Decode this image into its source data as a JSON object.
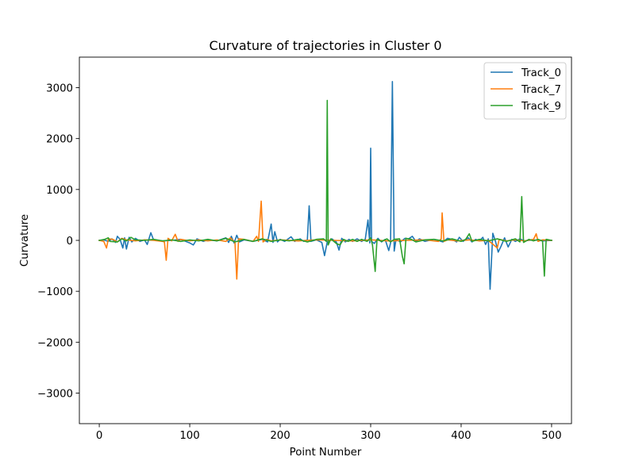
{
  "chart_data": {
    "type": "line",
    "title": "Curvature of trajectories in Cluster 0",
    "xlabel": "Point Number",
    "ylabel": "Curvature",
    "xlim": [
      -22,
      522
    ],
    "ylim": [
      -3600,
      3600
    ],
    "xticks": [
      0,
      100,
      200,
      300,
      400,
      500
    ],
    "yticks": [
      -3000,
      -2000,
      -1000,
      0,
      1000,
      2000,
      3000
    ],
    "xtick_labels": [
      "0",
      "100",
      "200",
      "300",
      "400",
      "500"
    ],
    "ytick_labels": [
      "−3000",
      "−2000",
      "−1000",
      "0",
      "1000",
      "2000",
      "3000"
    ],
    "grid": false,
    "legend_position": "top-right",
    "series": [
      {
        "name": "Track_0",
        "color": "#1f77b4",
        "points": [
          [
            0,
            0
          ],
          [
            5,
            10
          ],
          [
            10,
            -20
          ],
          [
            14,
            30
          ],
          [
            18,
            -40
          ],
          [
            20,
            80
          ],
          [
            23,
            20
          ],
          [
            26,
            -150
          ],
          [
            28,
            50
          ],
          [
            30,
            -170
          ],
          [
            33,
            60
          ],
          [
            36,
            -30
          ],
          [
            40,
            40
          ],
          [
            45,
            -20
          ],
          [
            50,
            10
          ],
          [
            53,
            -80
          ],
          [
            57,
            150
          ],
          [
            60,
            10
          ],
          [
            70,
            -10
          ],
          [
            80,
            0
          ],
          [
            90,
            20
          ],
          [
            100,
            -50
          ],
          [
            104,
            -90
          ],
          [
            108,
            30
          ],
          [
            115,
            -20
          ],
          [
            120,
            10
          ],
          [
            130,
            -10
          ],
          [
            140,
            50
          ],
          [
            143,
            -40
          ],
          [
            146,
            80
          ],
          [
            149,
            -50
          ],
          [
            152,
            100
          ],
          [
            155,
            -30
          ],
          [
            160,
            10
          ],
          [
            170,
            -20
          ],
          [
            180,
            20
          ],
          [
            186,
            -30
          ],
          [
            190,
            320
          ],
          [
            192,
            -40
          ],
          [
            194,
            170
          ],
          [
            197,
            -30
          ],
          [
            200,
            20
          ],
          [
            205,
            -20
          ],
          [
            212,
            70
          ],
          [
            216,
            -20
          ],
          [
            222,
            30
          ],
          [
            226,
            -20
          ],
          [
            230,
            10
          ],
          [
            232,
            680
          ],
          [
            234,
            -20
          ],
          [
            240,
            10
          ],
          [
            246,
            -40
          ],
          [
            249,
            -300
          ],
          [
            252,
            -30
          ],
          [
            257,
            30
          ],
          [
            262,
            -30
          ],
          [
            265,
            -190
          ],
          [
            268,
            40
          ],
          [
            272,
            -30
          ],
          [
            276,
            20
          ],
          [
            280,
            -20
          ],
          [
            285,
            30
          ],
          [
            290,
            -20
          ],
          [
            294,
            20
          ],
          [
            297,
            400
          ],
          [
            299,
            -50
          ],
          [
            300,
            1810
          ],
          [
            301,
            -20
          ],
          [
            304,
            -60
          ],
          [
            308,
            40
          ],
          [
            312,
            -30
          ],
          [
            316,
            20
          ],
          [
            320,
            -200
          ],
          [
            322,
            -50
          ],
          [
            324,
            3120
          ],
          [
            326,
            -210
          ],
          [
            328,
            20
          ],
          [
            333,
            -30
          ],
          [
            338,
            40
          ],
          [
            342,
            30
          ],
          [
            346,
            80
          ],
          [
            350,
            -20
          ],
          [
            354,
            30
          ],
          [
            360,
            -20
          ],
          [
            370,
            20
          ],
          [
            380,
            -30
          ],
          [
            385,
            40
          ],
          [
            390,
            20
          ],
          [
            395,
            -30
          ],
          [
            398,
            60
          ],
          [
            402,
            -20
          ],
          [
            408,
            50
          ],
          [
            412,
            -30
          ],
          [
            416,
            20
          ],
          [
            420,
            -10
          ],
          [
            424,
            60
          ],
          [
            427,
            -80
          ],
          [
            430,
            30
          ],
          [
            432,
            -960
          ],
          [
            435,
            140
          ],
          [
            438,
            -20
          ],
          [
            441,
            -230
          ],
          [
            444,
            -120
          ],
          [
            448,
            50
          ],
          [
            452,
            -130
          ],
          [
            456,
            20
          ],
          [
            460,
            -20
          ],
          [
            465,
            30
          ],
          [
            470,
            -10
          ],
          [
            480,
            10
          ],
          [
            490,
            -10
          ],
          [
            500,
            0
          ]
        ]
      },
      {
        "name": "Track_7",
        "color": "#ff7f0e",
        "points": [
          [
            0,
            0
          ],
          [
            5,
            -20
          ],
          [
            8,
            -150
          ],
          [
            10,
            30
          ],
          [
            15,
            20
          ],
          [
            20,
            -30
          ],
          [
            25,
            40
          ],
          [
            30,
            10
          ],
          [
            40,
            -10
          ],
          [
            50,
            10
          ],
          [
            60,
            0
          ],
          [
            70,
            -20
          ],
          [
            72,
            -30
          ],
          [
            74,
            -390
          ],
          [
            76,
            40
          ],
          [
            80,
            -10
          ],
          [
            84,
            120
          ],
          [
            87,
            -20
          ],
          [
            90,
            20
          ],
          [
            100,
            -10
          ],
          [
            110,
            10
          ],
          [
            120,
            -10
          ],
          [
            130,
            10
          ],
          [
            140,
            -20
          ],
          [
            145,
            50
          ],
          [
            150,
            -40
          ],
          [
            152,
            -760
          ],
          [
            154,
            30
          ],
          [
            160,
            20
          ],
          [
            170,
            -20
          ],
          [
            174,
            80
          ],
          [
            176,
            -20
          ],
          [
            179,
            770
          ],
          [
            181,
            -30
          ],
          [
            185,
            20
          ],
          [
            190,
            -10
          ],
          [
            200,
            10
          ],
          [
            220,
            -10
          ],
          [
            240,
            10
          ],
          [
            260,
            0
          ],
          [
            280,
            -10
          ],
          [
            300,
            10
          ],
          [
            320,
            -10
          ],
          [
            340,
            0
          ],
          [
            360,
            10
          ],
          [
            375,
            -20
          ],
          [
            378,
            30
          ],
          [
            379,
            540
          ],
          [
            381,
            -20
          ],
          [
            385,
            10
          ],
          [
            395,
            -10
          ],
          [
            410,
            10
          ],
          [
            420,
            -10
          ],
          [
            430,
            0
          ],
          [
            440,
            -150
          ],
          [
            442,
            20
          ],
          [
            450,
            -10
          ],
          [
            460,
            10
          ],
          [
            470,
            -10
          ],
          [
            480,
            20
          ],
          [
            483,
            130
          ],
          [
            485,
            -20
          ],
          [
            490,
            10
          ],
          [
            500,
            0
          ]
        ]
      },
      {
        "name": "Track_9",
        "color": "#2ca02c",
        "points": [
          [
            0,
            0
          ],
          [
            6,
            20
          ],
          [
            10,
            50
          ],
          [
            12,
            -20
          ],
          [
            20,
            -30
          ],
          [
            25,
            30
          ],
          [
            30,
            -10
          ],
          [
            35,
            60
          ],
          [
            40,
            10
          ],
          [
            50,
            0
          ],
          [
            60,
            20
          ],
          [
            70,
            -10
          ],
          [
            80,
            10
          ],
          [
            90,
            -20
          ],
          [
            100,
            10
          ],
          [
            110,
            -10
          ],
          [
            120,
            20
          ],
          [
            130,
            -10
          ],
          [
            140,
            40
          ],
          [
            150,
            -30
          ],
          [
            160,
            20
          ],
          [
            170,
            -20
          ],
          [
            180,
            30
          ],
          [
            190,
            -20
          ],
          [
            200,
            10
          ],
          [
            210,
            -10
          ],
          [
            220,
            20
          ],
          [
            230,
            -30
          ],
          [
            240,
            20
          ],
          [
            248,
            30
          ],
          [
            251,
            -20
          ],
          [
            252,
            2750
          ],
          [
            253,
            -90
          ],
          [
            256,
            30
          ],
          [
            262,
            -60
          ],
          [
            266,
            -90
          ],
          [
            270,
            20
          ],
          [
            275,
            -20
          ],
          [
            280,
            20
          ],
          [
            285,
            -20
          ],
          [
            290,
            20
          ],
          [
            296,
            -20
          ],
          [
            300,
            50
          ],
          [
            302,
            -90
          ],
          [
            305,
            -610
          ],
          [
            307,
            20
          ],
          [
            312,
            -20
          ],
          [
            318,
            30
          ],
          [
            322,
            -30
          ],
          [
            326,
            20
          ],
          [
            332,
            30
          ],
          [
            335,
            -310
          ],
          [
            337,
            -460
          ],
          [
            339,
            40
          ],
          [
            345,
            20
          ],
          [
            350,
            -30
          ],
          [
            360,
            10
          ],
          [
            370,
            20
          ],
          [
            380,
            -10
          ],
          [
            390,
            30
          ],
          [
            400,
            -20
          ],
          [
            405,
            20
          ],
          [
            409,
            130
          ],
          [
            412,
            -20
          ],
          [
            420,
            20
          ],
          [
            430,
            -10
          ],
          [
            440,
            30
          ],
          [
            450,
            -20
          ],
          [
            460,
            30
          ],
          [
            465,
            -30
          ],
          [
            467,
            860
          ],
          [
            469,
            -40
          ],
          [
            475,
            20
          ],
          [
            480,
            -10
          ],
          [
            485,
            20
          ],
          [
            490,
            -10
          ],
          [
            492,
            -700
          ],
          [
            494,
            20
          ],
          [
            500,
            0
          ]
        ]
      }
    ]
  }
}
